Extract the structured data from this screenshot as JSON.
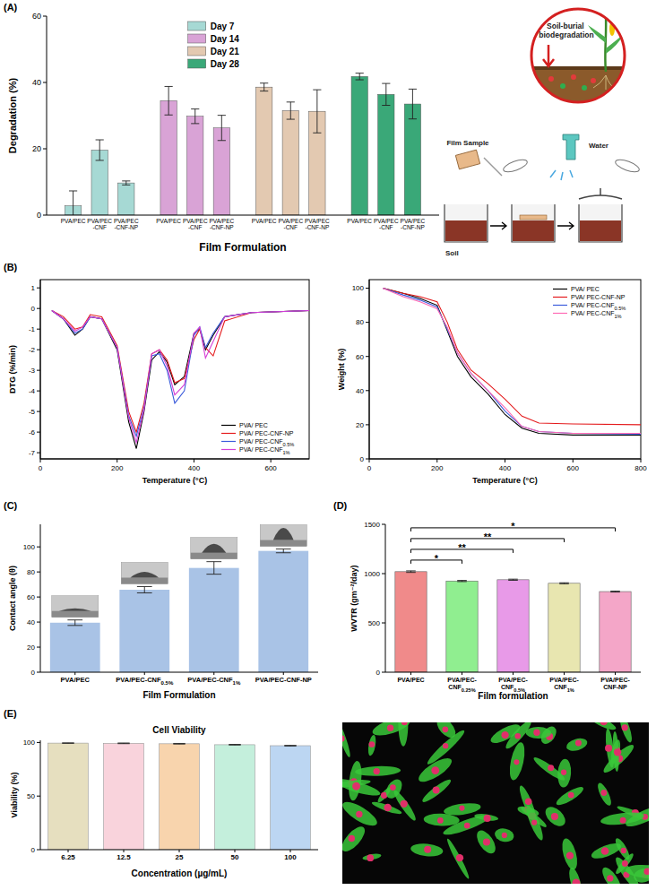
{
  "panels": [
    "(A)",
    "(B)",
    "(C)",
    "(D)",
    "(E)"
  ],
  "diagram": {
    "title": "Soil-burial biodegradation",
    "labels": [
      "Film Sample",
      "Water",
      "Soil"
    ]
  },
  "chart_data": [
    {
      "type": "bar",
      "ylabel": "Degradation (%)",
      "xlabel": "Film Formulation",
      "categories": [
        "PVA/PEC",
        "PVA/PEC-CNF",
        "PVA/PEC-CNF-NP",
        "PVA/PEC",
        "PVA/PEC-CNF",
        "PVA/PEC-CNF-NP",
        "PVA/PEC",
        "PVA/PEC-CNF",
        "PVA/PEC-CNF-NP",
        "PVA/PEC",
        "PVA/PEC-CNF",
        "PVA/PEC-CNF-NP"
      ],
      "series": [
        {
          "name": "Day 7",
          "color": "#a6d9d4",
          "values": [
            2.8,
            19.6,
            9.7,
            null,
            null,
            null,
            null,
            null,
            null,
            null,
            null,
            null
          ],
          "errors": [
            4.5,
            3.1,
            0.6,
            null,
            null,
            null,
            null,
            null,
            null,
            null,
            null,
            null
          ]
        },
        {
          "name": "Day 14",
          "color": "#d9a3d6",
          "values": [
            null,
            null,
            null,
            34.5,
            29.8,
            26.3,
            null,
            null,
            null,
            null,
            null,
            null
          ],
          "errors": [
            null,
            null,
            null,
            4.3,
            2.2,
            3.8,
            null,
            null,
            null,
            null,
            null,
            null
          ]
        },
        {
          "name": "Day 21",
          "color": "#e3c9b1",
          "values": [
            null,
            null,
            null,
            null,
            null,
            null,
            38.6,
            31.5,
            31.3,
            null,
            null,
            null
          ],
          "errors": [
            null,
            null,
            null,
            null,
            null,
            null,
            1.2,
            2.6,
            6.5,
            null,
            null,
            null
          ]
        },
        {
          "name": "Day 28",
          "color": "#3aa878",
          "values": [
            null,
            null,
            null,
            null,
            null,
            null,
            null,
            null,
            null,
            41.8,
            36.4,
            33.5
          ],
          "errors": [
            null,
            null,
            null,
            null,
            null,
            null,
            null,
            null,
            null,
            1.0,
            3.3,
            4.5
          ]
        }
      ],
      "ylim": [
        0,
        60
      ],
      "yticks": [
        0,
        20,
        40,
        60
      ],
      "legend": "upper center"
    },
    {
      "type": "line",
      "ylabel": "DTG (%/min)",
      "xlabel": "Temperature (°C)",
      "x": [
        30,
        60,
        90,
        110,
        130,
        160,
        200,
        230,
        250,
        270,
        290,
        310,
        330,
        350,
        375,
        400,
        415,
        430,
        450,
        480,
        550,
        700
      ],
      "series": [
        {
          "name": "PVA/ PEC",
          "color": "#000000",
          "values": [
            -0.1,
            -0.5,
            -1.3,
            -1.0,
            -0.4,
            -0.5,
            -2.0,
            -5.5,
            -6.8,
            -5.0,
            -2.5,
            -2.1,
            -2.6,
            -3.7,
            -3.3,
            -1.2,
            -1.0,
            -2.0,
            -1.3,
            -0.4,
            -0.2,
            -0.1
          ]
        },
        {
          "name": "PVA/ PEC-CNF-NP",
          "color": "#e41a1c",
          "values": [
            -0.1,
            -0.4,
            -1.0,
            -0.9,
            -0.3,
            -0.4,
            -1.8,
            -5.0,
            -6.0,
            -4.6,
            -2.2,
            -2.0,
            -2.5,
            -3.6,
            -3.4,
            -1.5,
            -1.0,
            -1.9,
            -2.3,
            -0.6,
            -0.2,
            -0.1
          ]
        },
        {
          "name": "PVA/ PEC-CNF0.5%",
          "color": "#3b5bdb",
          "values": [
            -0.1,
            -0.5,
            -1.2,
            -1.0,
            -0.4,
            -0.5,
            -1.9,
            -5.2,
            -6.2,
            -4.8,
            -2.3,
            -2.2,
            -3.0,
            -4.6,
            -4.0,
            -1.3,
            -0.9,
            -1.9,
            -1.2,
            -0.4,
            -0.2,
            -0.1
          ]
        },
        {
          "name": "PVA/ PEC-CNF1%",
          "color": "#d63fd6",
          "values": [
            -0.1,
            -0.5,
            -1.1,
            -0.9,
            -0.4,
            -0.5,
            -1.9,
            -5.3,
            -6.5,
            -4.9,
            -2.2,
            -2.0,
            -2.8,
            -4.2,
            -3.7,
            -1.2,
            -0.9,
            -2.4,
            -1.6,
            -0.4,
            -0.2,
            -0.1
          ]
        }
      ],
      "xlim": [
        0,
        700
      ],
      "xticks": [
        0,
        200,
        400,
        600
      ],
      "ylim": [
        -7.3,
        1.4
      ],
      "yticks": [
        -7,
        -6,
        -5,
        -4,
        -3,
        -2,
        -1,
        0,
        1
      ],
      "legend": "lower right"
    },
    {
      "type": "line",
      "ylabel": "Weight (%)",
      "xlabel": "Temperature (°C)",
      "x": [
        40,
        100,
        150,
        200,
        230,
        260,
        300,
        350,
        400,
        450,
        500,
        600,
        800
      ],
      "series": [
        {
          "name": "PVA/ PEC",
          "color": "#000000",
          "values": [
            100,
            97,
            94,
            90,
            75,
            60,
            48,
            38,
            26,
            18,
            15,
            14,
            14
          ]
        },
        {
          "name": "PVA/ PEC-CNF-NP",
          "color": "#e41a1c",
          "values": [
            100,
            97,
            95,
            92,
            80,
            64,
            52,
            44,
            35,
            25,
            21,
            20.5,
            20
          ]
        },
        {
          "name": "PVA/ PEC-CNF0.5%",
          "color": "#3b5bdb",
          "values": [
            100,
            96,
            93,
            89,
            76,
            62,
            50,
            40,
            28,
            19,
            16,
            15,
            14.5
          ]
        },
        {
          "name": "PVA/ PEC-CNF1%",
          "color": "#ff69b4",
          "values": [
            100,
            95,
            92,
            88,
            77,
            62,
            50,
            40,
            30,
            19,
            16,
            15,
            15
          ]
        }
      ],
      "xlim": [
        0,
        800
      ],
      "xticks": [
        0,
        200,
        400,
        600,
        800
      ],
      "ylim": [
        0,
        105
      ],
      "yticks": [
        0,
        20,
        40,
        60,
        80,
        100
      ],
      "legend": "upper right"
    },
    {
      "type": "bar",
      "ylabel": "Contact angle (θ)",
      "xlabel": "Film Formulation",
      "categories": [
        "PVA/PEC",
        "PVA/PEC-CNF0.5%",
        "PVA/PEC-CNF1%",
        "PVA/PEC-CNF-NP"
      ],
      "values": [
        39.5,
        65.8,
        83.2,
        96.8
      ],
      "errors": [
        2.2,
        2.5,
        5.0,
        1.5
      ],
      "color": "#a9c3e6",
      "ylim": [
        0,
        118
      ],
      "yticks": [
        0,
        20,
        40,
        60,
        80,
        100
      ]
    },
    {
      "type": "bar",
      "ylabel": "WVTR (gm⁻²/day)",
      "xlabel": "Film formulation",
      "categories": [
        "PVA/PEC",
        "PVA/PEC-CNF0.25%",
        "PVA/PEC-CNF0.5%",
        "PVA/PEC-CNF1%",
        "PVA/PEC-CNF-NP"
      ],
      "values": [
        1020,
        925,
        938,
        902,
        818
      ],
      "errors": [
        8,
        6,
        6,
        5,
        5
      ],
      "colors": [
        "#f08a8a",
        "#90ee90",
        "#e89ae8",
        "#e8e6b0",
        "#f4a6c8"
      ],
      "ylim": [
        0,
        1500
      ],
      "yticks": [
        0,
        500,
        1000,
        1500
      ],
      "annotations": [
        {
          "from": 0,
          "to": 1,
          "label": "*"
        },
        {
          "from": 0,
          "to": 2,
          "label": "**"
        },
        {
          "from": 0,
          "to": 3,
          "label": "**"
        },
        {
          "from": 0,
          "to": 4,
          "label": "*"
        }
      ]
    },
    {
      "type": "bar",
      "title": "Cell Viability",
      "ylabel": "Viability (%)",
      "xlabel": "Concentration (µg/mL)",
      "categories": [
        "6.25",
        "12.5",
        "25",
        "50",
        "100"
      ],
      "values": [
        99.4,
        99.2,
        98.8,
        97.9,
        97.0
      ],
      "errors": [
        0.2,
        0.3,
        0.3,
        0.3,
        0.3
      ],
      "colors": [
        "#e6dfbf",
        "#f9d3dc",
        "#f8d4ad",
        "#c4efdc",
        "#bcd6f2"
      ],
      "ylim": [
        0,
        102
      ],
      "yticks": [
        0,
        50,
        100
      ]
    }
  ]
}
